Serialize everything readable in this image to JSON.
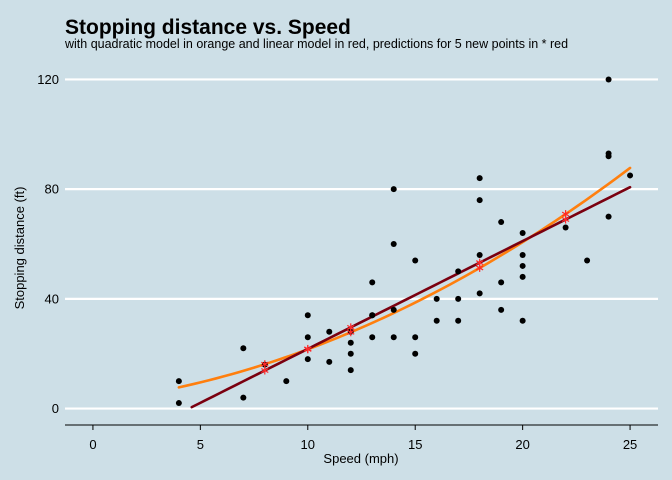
{
  "chart_data": {
    "type": "scatter",
    "title": "Stopping distance vs. Speed",
    "subtitle": "with quadratic model in orange and linear model in red, predictions for 5 new points in * red",
    "xlabel": "Speed (mph)",
    "ylabel": "Stopping distance (ft)",
    "xlim": [
      -1.3,
      26.3
    ],
    "ylim": [
      -6,
      126
    ],
    "x_ticks": [
      0,
      5,
      10,
      15,
      20,
      25
    ],
    "y_ticks": [
      0,
      40,
      80,
      120
    ],
    "grid": "horizontal major lines only",
    "colors": {
      "background": "#cddfe7",
      "grid": "#ffffff",
      "points": "#000000",
      "quadratic": "#ff7f0e",
      "linear": "#7a0010",
      "predictions": "#ff2a2a"
    },
    "series": [
      {
        "kind": "points",
        "points": [
          [
            4,
            2
          ],
          [
            4,
            10
          ],
          [
            7,
            4
          ],
          [
            7,
            22
          ],
          [
            8,
            16
          ],
          [
            9,
            10
          ],
          [
            10,
            18
          ],
          [
            10,
            26
          ],
          [
            10,
            34
          ],
          [
            11,
            17
          ],
          [
            11,
            28
          ],
          [
            12,
            14
          ],
          [
            12,
            20
          ],
          [
            12,
            24
          ],
          [
            12,
            28
          ],
          [
            13,
            26
          ],
          [
            13,
            34
          ],
          [
            13,
            34
          ],
          [
            13,
            46
          ],
          [
            14,
            26
          ],
          [
            14,
            36
          ],
          [
            14,
            60
          ],
          [
            14,
            80
          ],
          [
            15,
            20
          ],
          [
            15,
            26
          ],
          [
            15,
            54
          ],
          [
            16,
            32
          ],
          [
            16,
            40
          ],
          [
            17,
            32
          ],
          [
            17,
            40
          ],
          [
            17,
            50
          ],
          [
            18,
            42
          ],
          [
            18,
            56
          ],
          [
            18,
            76
          ],
          [
            18,
            84
          ],
          [
            19,
            36
          ],
          [
            19,
            46
          ],
          [
            19,
            68
          ],
          [
            20,
            32
          ],
          [
            20,
            48
          ],
          [
            20,
            52
          ],
          [
            20,
            56
          ],
          [
            20,
            64
          ],
          [
            22,
            66
          ],
          [
            23,
            54
          ],
          [
            24,
            70
          ],
          [
            24,
            92
          ],
          [
            24,
            93
          ],
          [
            24,
            120
          ],
          [
            25,
            85
          ]
        ]
      },
      {
        "kind": "line",
        "model": "quadratic",
        "x_range": [
          4,
          25
        ],
        "coefficients": {
          "c": 2.47,
          "b": 0.913,
          "a": 0.0999
        }
      },
      {
        "kind": "line",
        "model": "linear",
        "x_range": [
          4.6,
          25
        ],
        "coefficients": {
          "c": -17.58,
          "b": 3.932
        }
      },
      {
        "kind": "predictions",
        "marker": "*",
        "x": [
          8,
          10,
          12,
          18,
          22
        ]
      }
    ]
  }
}
